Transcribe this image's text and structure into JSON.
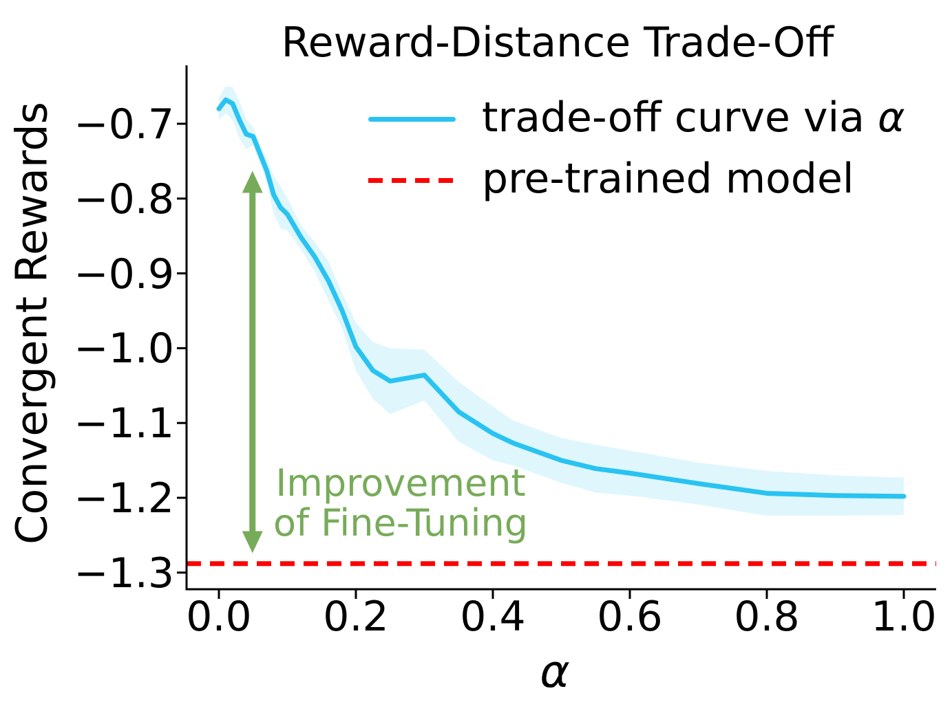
{
  "chart_data": {
    "type": "line",
    "title": "Reward-Distance Trade-Off",
    "xlabel": "α",
    "ylabel": "Convergent Rewards",
    "xlim": [
      -0.05,
      1.05
    ],
    "ylim": [
      -1.32,
      -0.62
    ],
    "grid": false,
    "legend_position": "upper right",
    "xticks": {
      "values": [
        0.0,
        0.2,
        0.4,
        0.6,
        0.8,
        1.0
      ],
      "labels": [
        "0.0",
        "0.2",
        "0.4",
        "0.6",
        "0.8",
        "1.0"
      ]
    },
    "yticks": {
      "values": [
        -0.7,
        -0.8,
        -0.9,
        -1.0,
        -1.1,
        -1.2,
        -1.3
      ],
      "labels": [
        "−0.7",
        "−0.8",
        "−0.9",
        "−1.0",
        "−1.1",
        "−1.2",
        "−1.3"
      ]
    },
    "series": [
      {
        "name": "trade-off curve via α",
        "type": "line-with-band",
        "color": "#29c3f1",
        "band_opacity": 0.15,
        "x": [
          0.0,
          0.01,
          0.02,
          0.03,
          0.04,
          0.05,
          0.06,
          0.07,
          0.08,
          0.09,
          0.1,
          0.12,
          0.14,
          0.16,
          0.18,
          0.2,
          0.225,
          0.25,
          0.3,
          0.35,
          0.4,
          0.43,
          0.5,
          0.55,
          0.6,
          0.7,
          0.8,
          0.9,
          1.0
        ],
        "y": [
          -0.68,
          -0.668,
          -0.673,
          -0.695,
          -0.714,
          -0.717,
          -0.74,
          -0.763,
          -0.795,
          -0.812,
          -0.821,
          -0.852,
          -0.878,
          -0.91,
          -0.95,
          -0.998,
          -1.03,
          -1.044,
          -1.036,
          -1.085,
          -1.114,
          -1.127,
          -1.15,
          -1.161,
          -1.167,
          -1.181,
          -1.194,
          -1.197,
          -1.198
        ],
        "band_halfwidth": [
          0.015,
          0.018,
          0.022,
          0.025,
          0.02,
          0.012,
          0.013,
          0.016,
          0.025,
          0.028,
          0.022,
          0.016,
          0.02,
          0.026,
          0.024,
          0.032,
          0.038,
          0.044,
          0.034,
          0.04,
          0.036,
          0.03,
          0.03,
          0.032,
          0.03,
          0.028,
          0.03,
          0.027,
          0.025
        ]
      },
      {
        "name": "pre-trained model",
        "type": "hline",
        "style": "dashed",
        "color": "#ff0000",
        "value": -1.288
      }
    ],
    "legend": {
      "items": [
        {
          "label": "trade-off curve via ",
          "label_math": "α",
          "sample": "solid-line",
          "color": "#29c3f1"
        },
        {
          "label": "pre-trained model",
          "label_math": "",
          "sample": "dashed-line",
          "color": "#ff0000"
        }
      ]
    },
    "annotation": {
      "line1": "Improvement",
      "line2": "of Fine-Tuning",
      "color": "#77ab59",
      "arrow": {
        "type": "double-headed-vertical",
        "x": 0.049,
        "y_top": -0.763,
        "y_bottom": -1.274
      }
    },
    "colors": {
      "axis": "#000000",
      "text": "#000000",
      "background": "#ffffff"
    }
  }
}
